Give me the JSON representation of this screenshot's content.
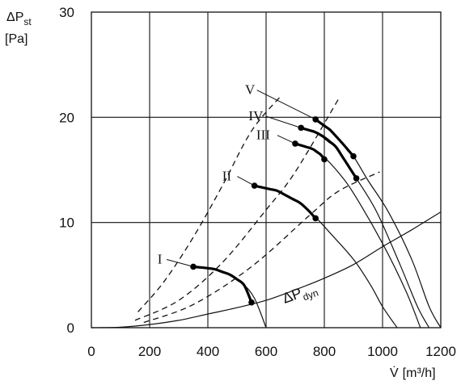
{
  "chart_data": {
    "type": "line",
    "ylabel": {
      "main": "ΔP",
      "sub": "st",
      "unit": "[Pa]"
    },
    "xlabel": {
      "main": "V̇",
      "unit": "[m³/h]"
    },
    "xlim": [
      0,
      1200
    ],
    "ylim": [
      0,
      30
    ],
    "xticks": [
      "0",
      "200",
      "400",
      "600",
      "800",
      "1000",
      "1200"
    ],
    "yticks": [
      "0",
      "10",
      "20",
      "30"
    ],
    "grid": true,
    "fan_curves": [
      {
        "name": "I",
        "points": [
          [
            350,
            5.8
          ],
          [
            420,
            5.6
          ],
          [
            480,
            5.0
          ],
          [
            520,
            4.2
          ],
          [
            560,
            2.8
          ],
          [
            600,
            0.0
          ]
        ],
        "operating_range": [
          [
            350,
            5.8
          ],
          [
            550,
            2.4
          ]
        ]
      },
      {
        "name": "II",
        "points": [
          [
            560,
            13.5
          ],
          [
            640,
            13.0
          ],
          [
            720,
            11.8
          ],
          [
            770,
            10.5
          ],
          [
            820,
            9.0
          ],
          [
            900,
            6.5
          ],
          [
            960,
            4.0
          ],
          [
            1000,
            2.0
          ],
          [
            1050,
            0.0
          ]
        ],
        "operating_range": [
          [
            560,
            13.5
          ],
          [
            770,
            10.4
          ]
        ]
      },
      {
        "name": "III",
        "points": [
          [
            700,
            17.5
          ],
          [
            760,
            17.0
          ],
          [
            800,
            16.2
          ],
          [
            850,
            14.7
          ],
          [
            900,
            12.8
          ],
          [
            1000,
            8.0
          ],
          [
            1080,
            3.5
          ],
          [
            1130,
            0.0
          ]
        ],
        "operating_range": [
          [
            700,
            17.5
          ],
          [
            800,
            16.0
          ]
        ]
      },
      {
        "name": "IV",
        "points": [
          [
            720,
            19.0
          ],
          [
            780,
            18.5
          ],
          [
            840,
            17.2
          ],
          [
            910,
            14.2
          ],
          [
            980,
            11.0
          ],
          [
            1060,
            6.0
          ],
          [
            1120,
            2.0
          ],
          [
            1160,
            0.0
          ]
        ],
        "operating_range": [
          [
            720,
            19.0
          ],
          [
            910,
            14.2
          ]
        ]
      },
      {
        "name": "V",
        "points": [
          [
            770,
            19.8
          ],
          [
            820,
            18.8
          ],
          [
            860,
            17.6
          ],
          [
            900,
            16.3
          ],
          [
            950,
            14.0
          ],
          [
            1020,
            11.0
          ],
          [
            1100,
            6.5
          ],
          [
            1160,
            2.0
          ],
          [
            1200,
            0.0
          ]
        ],
        "operating_range": [
          [
            770,
            19.8
          ],
          [
            900,
            16.3
          ]
        ]
      }
    ],
    "dynamic_pressure": {
      "name": "ΔP",
      "name_sub": "dyn",
      "points": [
        [
          0,
          0.0
        ],
        [
          100,
          0.05
        ],
        [
          200,
          0.3
        ],
        [
          300,
          0.7
        ],
        [
          400,
          1.3
        ],
        [
          500,
          1.9
        ],
        [
          600,
          2.6
        ],
        [
          700,
          3.6
        ],
        [
          800,
          4.7
        ],
        [
          900,
          6.0
        ],
        [
          1000,
          7.7
        ],
        [
          1100,
          9.3
        ],
        [
          1200,
          11.0
        ]
      ]
    },
    "system_curves": [
      {
        "points": [
          [
            160,
            1.5
          ],
          [
            250,
            4.4
          ],
          [
            350,
            8.6
          ],
          [
            450,
            13.5
          ],
          [
            550,
            18.7
          ],
          [
            650,
            22.0
          ]
        ]
      },
      {
        "points": [
          [
            150,
            0.7
          ],
          [
            300,
            2.6
          ],
          [
            450,
            6.2
          ],
          [
            600,
            11.2
          ],
          [
            700,
            14.8
          ],
          [
            850,
            21.8
          ]
        ]
      },
      {
        "points": [
          [
            180,
            0.5
          ],
          [
            350,
            2.2
          ],
          [
            550,
            5.8
          ],
          [
            750,
            10.7
          ],
          [
            850,
            13.0
          ],
          [
            990,
            14.8
          ]
        ]
      }
    ],
    "label_leaders": [
      {
        "name": "I",
        "label_at": [
          235,
          6.1
        ],
        "to": [
          350,
          5.8
        ]
      },
      {
        "name": "II",
        "label_at": [
          465,
          14.0
        ],
        "to": [
          560,
          13.5
        ]
      },
      {
        "name": "III",
        "label_at": [
          590,
          17.9
        ],
        "to": [
          700,
          17.5
        ]
      },
      {
        "name": "IV",
        "label_at": [
          565,
          19.7
        ],
        "to": [
          720,
          19.0
        ]
      },
      {
        "name": "V",
        "label_at": [
          545,
          22.2
        ],
        "to": [
          770,
          19.8
        ]
      }
    ]
  }
}
